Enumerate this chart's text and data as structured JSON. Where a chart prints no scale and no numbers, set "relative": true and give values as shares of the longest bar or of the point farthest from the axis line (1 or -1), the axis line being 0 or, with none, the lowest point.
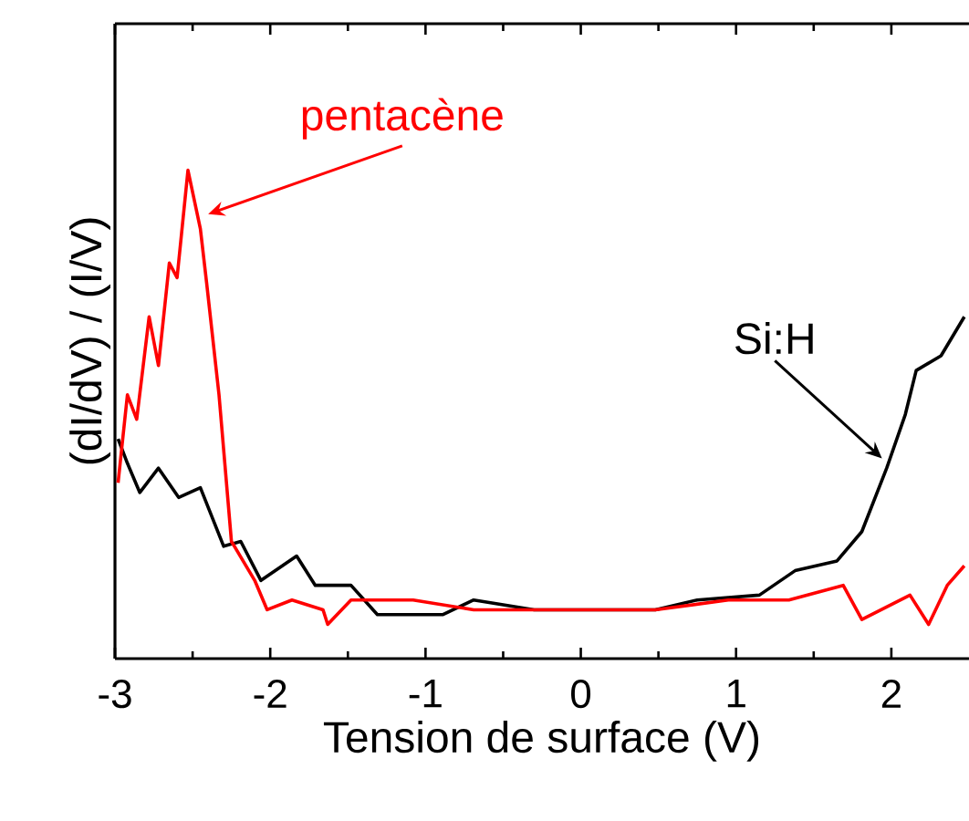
{
  "chart_data": {
    "type": "line",
    "relative": true,
    "xlabel": "Tension de surface (V)",
    "ylabel": "(dI/dV) / (I/V)",
    "xlim": [
      -3,
      2.5
    ],
    "xticks": [
      -3,
      -2,
      -1,
      0,
      1,
      2
    ],
    "marker": "none",
    "line_style": "solid",
    "series": [
      {
        "name": "Si:H",
        "color": "#000000",
        "x": [
          -2.98,
          -2.92,
          -2.84,
          -2.72,
          -2.59,
          -2.45,
          -2.3,
          -2.19,
          -2.06,
          -1.83,
          -1.71,
          -1.48,
          -1.31,
          -0.89,
          -0.69,
          -0.3,
          0.48,
          0.75,
          1.15,
          1.38,
          1.65,
          1.81,
          1.97,
          2.09,
          2.16,
          2.32,
          2.47
        ],
        "values": [
          0.45,
          0.4,
          0.34,
          0.39,
          0.33,
          0.35,
          0.23,
          0.24,
          0.16,
          0.21,
          0.15,
          0.15,
          0.09,
          0.09,
          0.12,
          0.1,
          0.1,
          0.12,
          0.13,
          0.18,
          0.2,
          0.26,
          0.39,
          0.5,
          0.59,
          0.62,
          0.7
        ]
      },
      {
        "name": "pentacène",
        "color": "#ff0000",
        "x": [
          -2.98,
          -2.92,
          -2.86,
          -2.78,
          -2.72,
          -2.65,
          -2.6,
          -2.53,
          -2.45,
          -2.41,
          -2.33,
          -2.25,
          -2.1,
          -2.02,
          -1.86,
          -1.66,
          -1.63,
          -1.48,
          -1.08,
          -0.69,
          -0.3,
          0.13,
          0.48,
          0.95,
          1.34,
          1.69,
          1.81,
          2.12,
          2.24,
          2.36,
          2.47
        ],
        "values": [
          0.36,
          0.54,
          0.49,
          0.7,
          0.6,
          0.81,
          0.78,
          1.0,
          0.88,
          0.77,
          0.54,
          0.24,
          0.16,
          0.1,
          0.12,
          0.1,
          0.07,
          0.12,
          0.12,
          0.1,
          0.1,
          0.1,
          0.1,
          0.12,
          0.12,
          0.15,
          0.08,
          0.13,
          0.07,
          0.15,
          0.19
        ]
      }
    ]
  }
}
